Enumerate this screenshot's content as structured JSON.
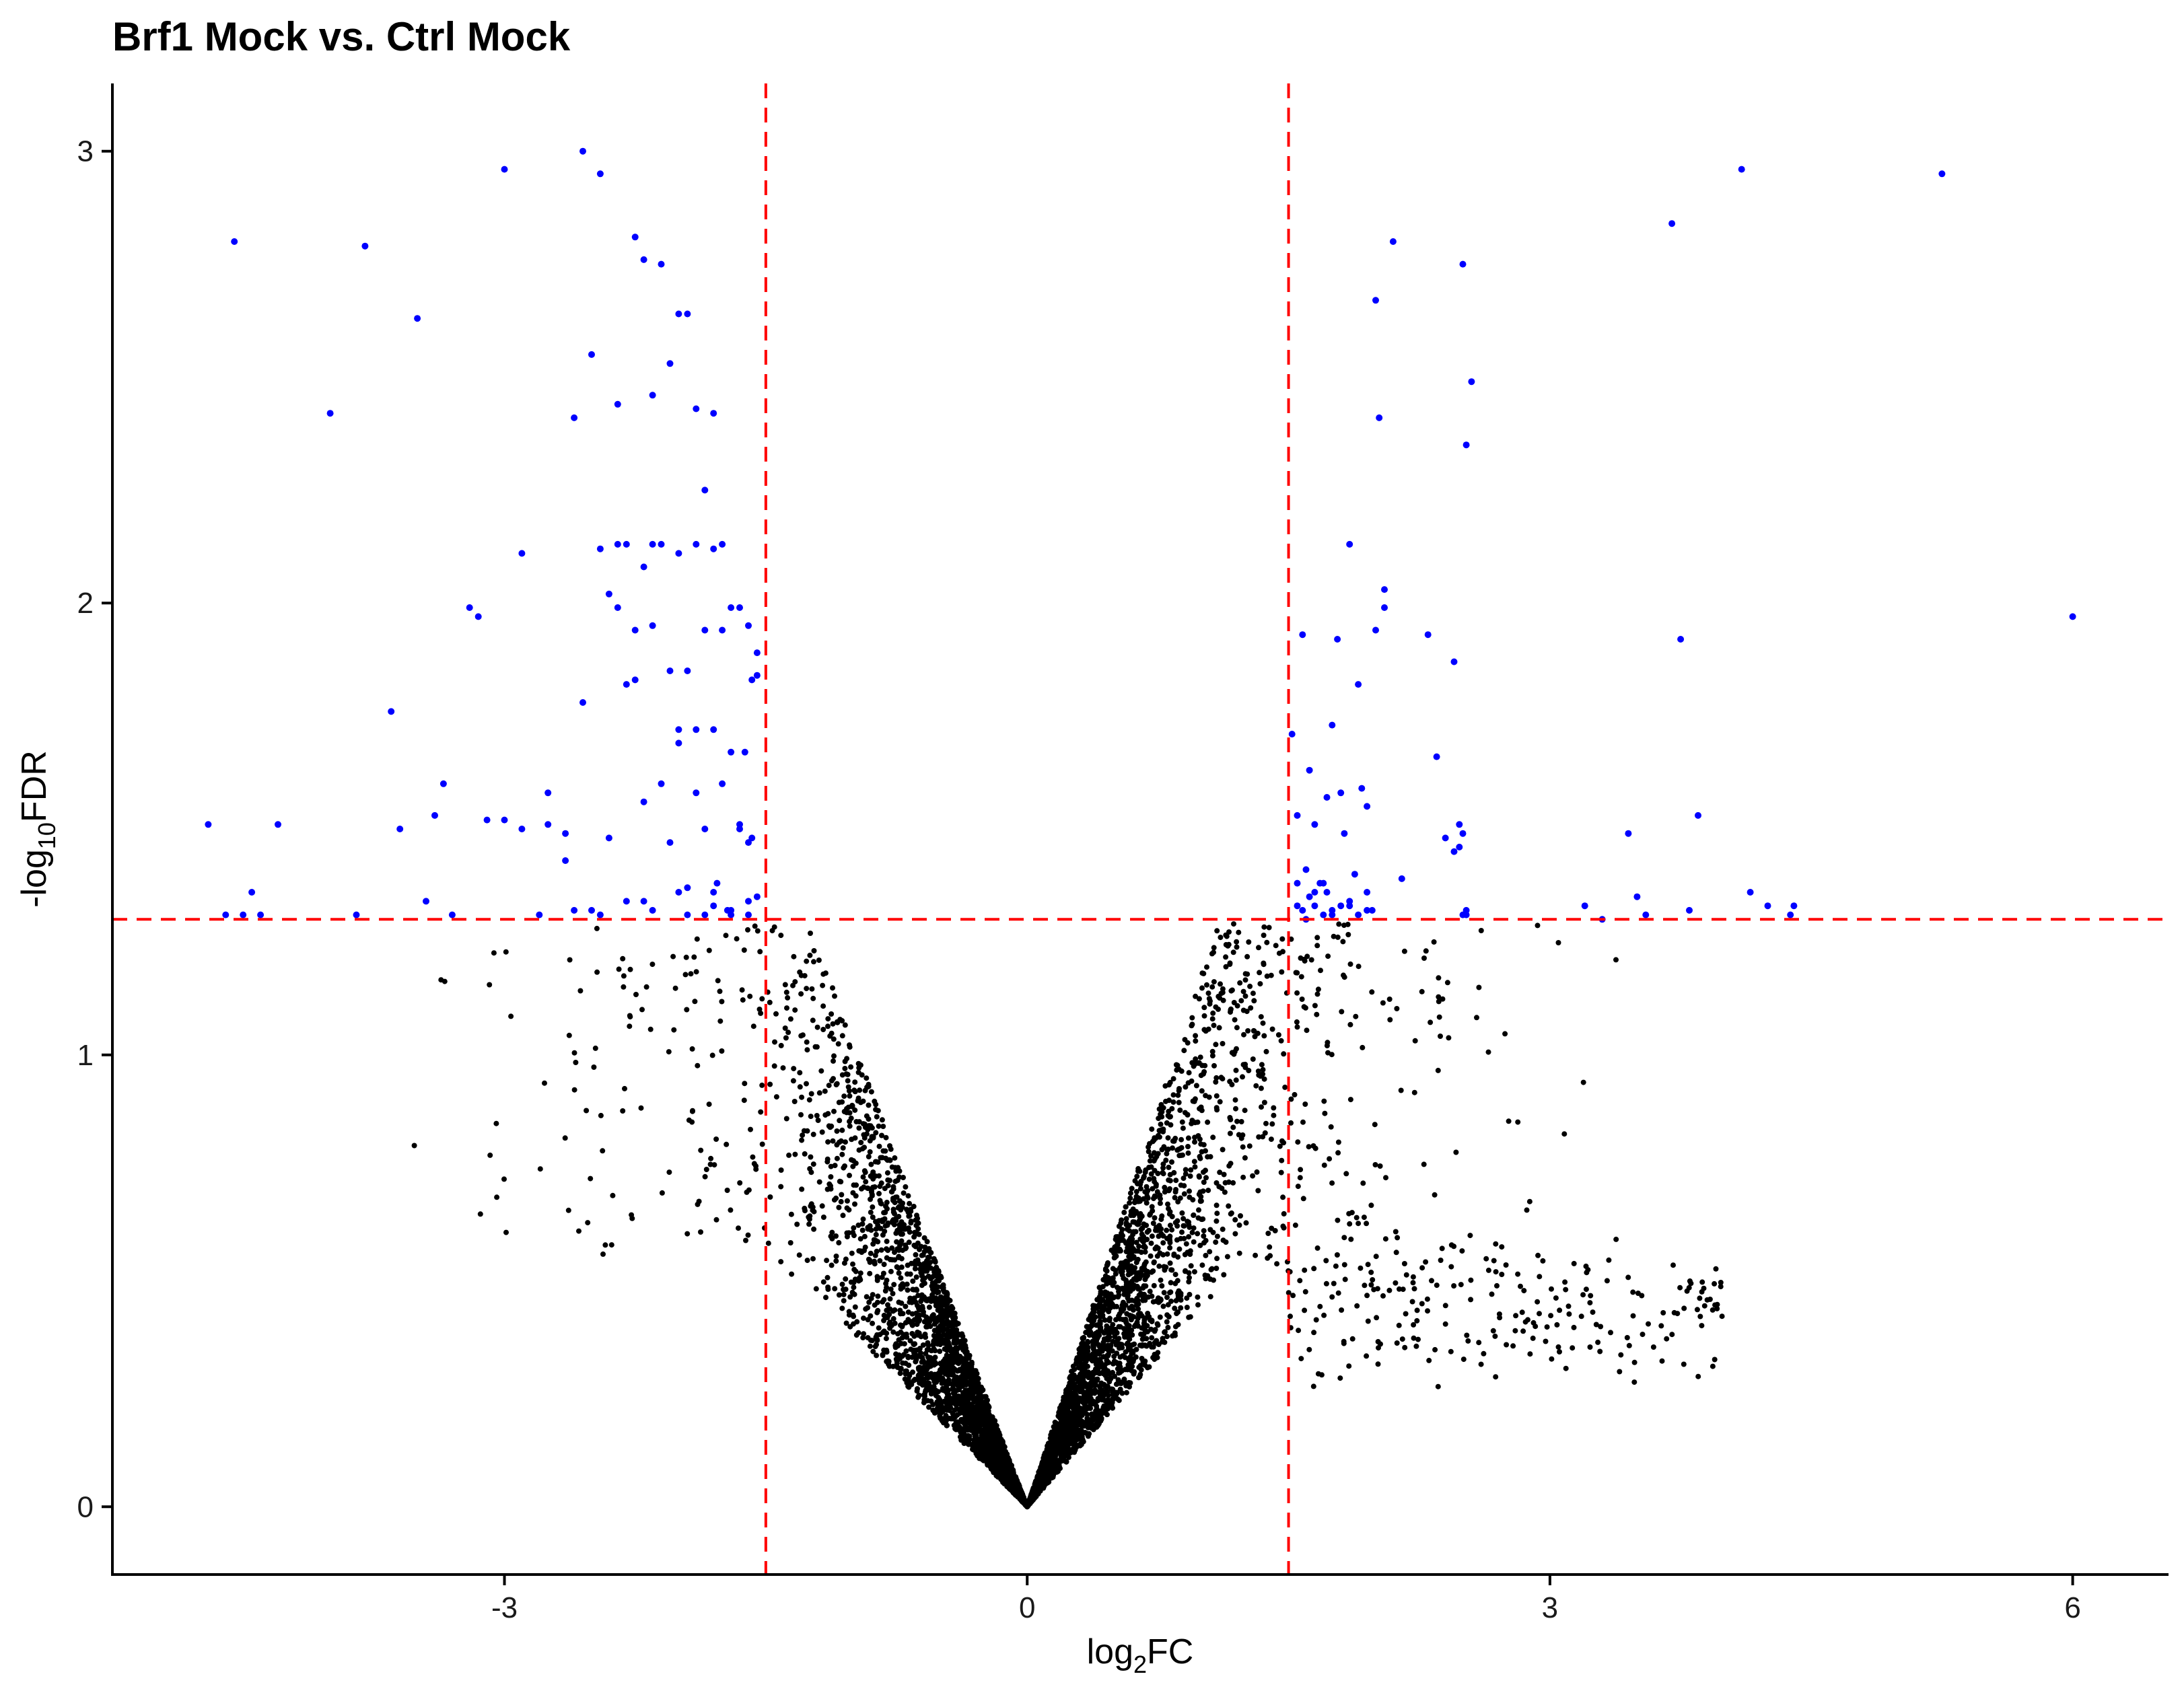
{
  "chart_data": {
    "type": "scatter",
    "title": "Brf1 Mock vs. Ctrl Mock",
    "xlabel": {
      "main": "log",
      "sub": "2",
      "tail": "FC"
    },
    "ylabel": {
      "main": "-log",
      "sub": "10",
      "tail": "FDR"
    },
    "xlim": [
      -5.25,
      6.55
    ],
    "ylim": [
      -0.15,
      3.15
    ],
    "x_ticks": [
      -3,
      0,
      3,
      6
    ],
    "x_tick_labels": [
      "-3",
      "0",
      "3",
      "6"
    ],
    "y_ticks": [
      0,
      1,
      2,
      3
    ],
    "y_tick_labels": [
      "0",
      "1",
      "2",
      "3"
    ],
    "grid": false,
    "legend": "none",
    "thresholds": {
      "vertical": [
        -1.5,
        1.5
      ],
      "horizontal": 1.3
    },
    "colors": {
      "significant": "#0000ff",
      "not_significant": "#000000",
      "threshold": "#ff0000"
    },
    "series": [
      {
        "status": "significant",
        "x": [
          -4.7,
          -4.5,
          -4.4,
          -4.3,
          -4.55,
          -4.45,
          -4.6,
          -4.0,
          -3.8,
          -3.5,
          -3.65,
          -3.35,
          -3.2,
          -3.0,
          -2.9,
          -2.75,
          -2.65,
          -2.55,
          -2.45,
          -2.4,
          -2.35,
          -2.25,
          -2.2,
          -2.15,
          -2.1,
          -2.05,
          -2.0,
          -1.95,
          -1.9,
          -1.85,
          -1.8,
          -1.75,
          -1.7,
          -1.65,
          -1.6,
          -1.55,
          -3.15,
          -3.1,
          -2.8,
          -2.5,
          -2.3,
          -2.45,
          -2.6,
          -2.35,
          -2.2,
          -2.1,
          -2.0,
          -1.9,
          -1.8,
          -1.7,
          -1.6,
          -1.55,
          -2.55,
          -2.25,
          -2.15,
          -2.05,
          -1.95,
          -1.85,
          -1.75,
          -1.65,
          -1.58,
          -2.35,
          -2.25,
          -2.15,
          -2.0,
          -1.9,
          -1.8,
          -1.7,
          -1.62,
          -2.3,
          -2.2,
          -2.1,
          -2.0,
          -1.9,
          -1.85,
          -1.75,
          -1.65,
          -1.6,
          -2.65,
          -2.4,
          -2.05,
          -1.95,
          -1.8,
          -1.72,
          -1.58,
          -3.4,
          -3.6,
          -2.9,
          -2.75,
          -3.0,
          -2.3,
          -2.15,
          -1.95,
          -1.85,
          -1.7,
          -2.5,
          -2.0,
          -1.8,
          -1.6,
          -3.85,
          -3.45,
          -3.3,
          -2.6,
          -2.45,
          -2.2,
          -1.78,
          -1.55,
          1.52,
          1.58,
          1.62,
          1.68,
          1.72,
          1.78,
          1.85,
          1.9,
          1.95,
          2.0,
          2.05,
          2.1,
          1.55,
          1.65,
          1.75,
          1.82,
          1.92,
          2.3,
          2.45,
          2.5,
          2.55,
          2.52,
          2.0,
          2.02,
          2.4,
          2.35,
          2.5,
          2.48,
          1.98,
          2.05,
          2.52,
          1.55,
          1.75,
          1.85,
          1.95,
          3.2,
          3.45,
          3.5,
          3.75,
          3.8,
          3.85,
          4.1,
          4.15,
          4.25,
          4.4,
          4.38,
          3.7,
          5.25,
          6.0,
          1.6,
          1.7,
          1.8,
          1.9,
          1.55,
          1.65,
          1.75,
          1.85,
          2.15,
          2.45,
          2.5,
          1.6,
          1.72,
          1.95,
          3.3,
          3.55,
          1.65,
          1.88,
          1.58,
          1.7,
          1.62,
          1.8,
          2.48,
          2.52
        ],
        "y": [
          1.51,
          1.31,
          1.31,
          1.51,
          2.8,
          1.36,
          1.31,
          2.42,
          2.79,
          2.63,
          1.76,
          1.6,
          1.99,
          2.96,
          2.11,
          1.51,
          1.43,
          3.0,
          2.95,
          2.02,
          2.44,
          2.81,
          2.76,
          2.46,
          2.75,
          2.53,
          2.64,
          2.64,
          2.43,
          2.25,
          2.42,
          2.13,
          1.31,
          1.51,
          1.31,
          1.84,
          1.97,
          1.52,
          1.31,
          2.55,
          2.13,
          2.12,
          2.41,
          2.13,
          2.08,
          2.13,
          2.11,
          2.13,
          2.12,
          1.99,
          1.95,
          1.89,
          1.78,
          1.83,
          2.13,
          1.85,
          1.85,
          1.94,
          1.94,
          1.99,
          1.83,
          1.99,
          1.94,
          1.95,
          1.72,
          1.72,
          1.72,
          1.67,
          1.67,
          1.82,
          1.56,
          1.6,
          1.69,
          1.58,
          1.5,
          1.6,
          1.5,
          1.47,
          1.49,
          1.48,
          1.47,
          1.37,
          1.33,
          1.32,
          1.48,
          1.53,
          1.5,
          1.5,
          1.58,
          1.52,
          1.34,
          1.32,
          1.31,
          1.31,
          1.32,
          1.32,
          1.36,
          1.36,
          1.34,
          1.31,
          1.34,
          1.31,
          1.32,
          1.31,
          1.34,
          1.38,
          1.35,
          1.71,
          1.93,
          1.63,
          1.38,
          1.57,
          1.92,
          2.13,
          1.82,
          1.55,
          1.94,
          2.03,
          2.8,
          1.53,
          1.51,
          1.73,
          1.49,
          1.59,
          1.93,
          1.87,
          2.75,
          2.49,
          2.35,
          2.67,
          2.41,
          1.48,
          1.66,
          1.49,
          1.51,
          1.32,
          1.99,
          1.32,
          1.33,
          1.32,
          1.34,
          1.32,
          1.33,
          1.49,
          1.35,
          1.92,
          1.32,
          1.53,
          2.96,
          1.36,
          1.33,
          1.33,
          1.31,
          2.84,
          2.95,
          1.97,
          1.41,
          1.38,
          1.58,
          1.31,
          1.38,
          1.36,
          1.31,
          1.33,
          1.39,
          1.45,
          1.31,
          1.3,
          1.36,
          1.36,
          1.3,
          1.31,
          1.33,
          1.4,
          1.32,
          1.31,
          1.35,
          1.33,
          1.46,
          1.31
        ]
      }
    ]
  }
}
